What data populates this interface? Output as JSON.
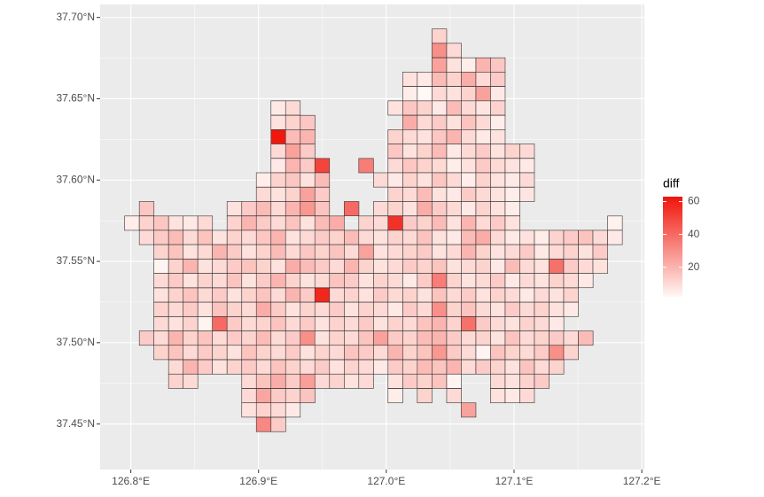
{
  "chart_data": {
    "type": "heatmap",
    "legend_title": "diff",
    "x": [
      126.8009,
      126.8124,
      126.8238,
      126.8353,
      126.8467,
      126.8582,
      126.8696,
      126.8811,
      126.8926,
      126.904,
      126.9155,
      126.9269,
      126.9384,
      126.9498,
      126.9613,
      126.9728,
      126.9842,
      126.9957,
      127.0071,
      127.0186,
      127.03,
      127.0415,
      127.053,
      127.0644,
      127.0759,
      127.0873,
      127.0988,
      127.1102,
      127.1217,
      127.1332,
      127.1446,
      127.1561,
      127.1675,
      127.179
    ],
    "y": [
      37.6885,
      37.6797,
      37.6708,
      37.662,
      37.6531,
      37.6443,
      37.6354,
      37.6266,
      37.6178,
      37.6089,
      37.6001,
      37.5912,
      37.5824,
      37.5735,
      37.5647,
      37.5559,
      37.547,
      37.5382,
      37.5293,
      37.5205,
      37.5116,
      37.5028,
      37.494,
      37.4851,
      37.4763,
      37.4674,
      37.4586,
      37.4497
    ],
    "values": [
      [
        null,
        null,
        null,
        null,
        null,
        null,
        null,
        null,
        null,
        null,
        null,
        null,
        null,
        null,
        null,
        null,
        null,
        null,
        null,
        null,
        null,
        12,
        null,
        null,
        null,
        null,
        null,
        null,
        null,
        null,
        null,
        null,
        null,
        null
      ],
      [
        null,
        null,
        null,
        null,
        null,
        null,
        null,
        null,
        null,
        null,
        null,
        null,
        null,
        null,
        null,
        null,
        null,
        null,
        null,
        null,
        null,
        30,
        10,
        null,
        null,
        null,
        null,
        null,
        null,
        null,
        null,
        null,
        null,
        null
      ],
      [
        null,
        null,
        null,
        null,
        null,
        null,
        null,
        null,
        null,
        null,
        null,
        null,
        null,
        null,
        null,
        null,
        null,
        null,
        null,
        null,
        null,
        25,
        8,
        5,
        20,
        15,
        null,
        null,
        null,
        null,
        null,
        null,
        null,
        null
      ],
      [
        null,
        null,
        null,
        null,
        null,
        null,
        null,
        null,
        null,
        null,
        null,
        null,
        null,
        null,
        null,
        null,
        null,
        null,
        null,
        8,
        6,
        18,
        12,
        22,
        10,
        14,
        null,
        null,
        null,
        null,
        null,
        null,
        null,
        null
      ],
      [
        null,
        null,
        null,
        null,
        null,
        null,
        null,
        null,
        null,
        null,
        null,
        null,
        null,
        null,
        null,
        null,
        null,
        null,
        null,
        5,
        2,
        10,
        8,
        12,
        25,
        6,
        null,
        null,
        null,
        null,
        null,
        null,
        null,
        null
      ],
      [
        null,
        null,
        null,
        null,
        null,
        null,
        null,
        null,
        null,
        null,
        6,
        10,
        null,
        null,
        null,
        null,
        null,
        null,
        8,
        15,
        12,
        6,
        18,
        10,
        7,
        12,
        null,
        null,
        null,
        null,
        null,
        null,
        null,
        null
      ],
      [
        null,
        null,
        null,
        null,
        null,
        null,
        null,
        null,
        null,
        null,
        8,
        12,
        15,
        null,
        null,
        null,
        null,
        null,
        null,
        22,
        10,
        14,
        8,
        16,
        10,
        5,
        null,
        null,
        null,
        null,
        null,
        null,
        null,
        null
      ],
      [
        null,
        null,
        null,
        null,
        null,
        null,
        null,
        null,
        null,
        null,
        62,
        18,
        20,
        null,
        null,
        null,
        null,
        null,
        12,
        10,
        8,
        15,
        20,
        10,
        6,
        8,
        null,
        null,
        null,
        null,
        null,
        null,
        null,
        null
      ],
      [
        null,
        null,
        null,
        null,
        null,
        null,
        null,
        null,
        null,
        null,
        10,
        25,
        14,
        null,
        null,
        null,
        null,
        null,
        15,
        8,
        12,
        18,
        6,
        10,
        14,
        8,
        12,
        10,
        null,
        null,
        null,
        null,
        null,
        null
      ],
      [
        null,
        null,
        null,
        null,
        null,
        null,
        null,
        null,
        null,
        null,
        6,
        20,
        14,
        50,
        null,
        null,
        35,
        null,
        10,
        15,
        12,
        10,
        5,
        8,
        14,
        10,
        8,
        6,
        null,
        null,
        null,
        null,
        null,
        null
      ],
      [
        null,
        null,
        null,
        null,
        null,
        null,
        null,
        null,
        null,
        5,
        12,
        15,
        8,
        18,
        null,
        null,
        null,
        10,
        6,
        12,
        8,
        15,
        10,
        5,
        12,
        8,
        6,
        10,
        null,
        null,
        null,
        null,
        null,
        null
      ],
      [
        null,
        null,
        null,
        null,
        null,
        null,
        null,
        null,
        null,
        10,
        8,
        12,
        25,
        14,
        null,
        null,
        null,
        null,
        12,
        10,
        18,
        8,
        6,
        14,
        10,
        8,
        5,
        7,
        null,
        null,
        null,
        null,
        null,
        null
      ],
      [
        null,
        15,
        null,
        null,
        null,
        null,
        null,
        8,
        14,
        18,
        10,
        20,
        28,
        16,
        null,
        40,
        null,
        10,
        12,
        8,
        22,
        14,
        10,
        6,
        12,
        8,
        5,
        null,
        null,
        null,
        null,
        null,
        null,
        null
      ],
      [
        5,
        12,
        15,
        8,
        6,
        10,
        null,
        12,
        20,
        14,
        10,
        16,
        8,
        18,
        22,
        null,
        12,
        10,
        55,
        14,
        12,
        18,
        8,
        20,
        10,
        14,
        8,
        null,
        null,
        null,
        null,
        null,
        null,
        4
      ],
      [
        null,
        10,
        14,
        18,
        10,
        16,
        8,
        12,
        10,
        15,
        20,
        8,
        10,
        14,
        12,
        18,
        10,
        8,
        12,
        10,
        16,
        8,
        6,
        18,
        22,
        10,
        6,
        8,
        5,
        12,
        14,
        16,
        10,
        6
      ],
      [
        null,
        null,
        12,
        16,
        8,
        10,
        20,
        14,
        8,
        12,
        18,
        10,
        15,
        12,
        16,
        10,
        25,
        8,
        10,
        12,
        14,
        8,
        10,
        20,
        12,
        8,
        10,
        14,
        6,
        10,
        12,
        8,
        14,
        null
      ],
      [
        null,
        null,
        3,
        12,
        20,
        8,
        10,
        14,
        16,
        12,
        8,
        22,
        18,
        14,
        10,
        20,
        12,
        8,
        10,
        14,
        12,
        16,
        8,
        10,
        12,
        6,
        18,
        10,
        8,
        38,
        14,
        10,
        8,
        null
      ],
      [
        null,
        null,
        10,
        14,
        8,
        12,
        10,
        16,
        8,
        14,
        20,
        12,
        8,
        10,
        16,
        14,
        8,
        12,
        10,
        6,
        14,
        35,
        12,
        8,
        10,
        14,
        6,
        10,
        8,
        12,
        10,
        6,
        null,
        null
      ],
      [
        null,
        null,
        8,
        12,
        16,
        10,
        14,
        8,
        12,
        16,
        10,
        20,
        14,
        58,
        10,
        12,
        8,
        14,
        10,
        12,
        8,
        16,
        10,
        14,
        8,
        12,
        10,
        6,
        10,
        8,
        12,
        null,
        null,
        null
      ],
      [
        null,
        null,
        12,
        10,
        14,
        8,
        16,
        12,
        10,
        22,
        14,
        8,
        12,
        10,
        14,
        8,
        12,
        10,
        6,
        14,
        10,
        30,
        12,
        16,
        10,
        8,
        14,
        10,
        12,
        8,
        6,
        null,
        null,
        null
      ],
      [
        null,
        null,
        10,
        8,
        12,
        3,
        40,
        14,
        10,
        12,
        16,
        10,
        14,
        8,
        12,
        10,
        14,
        8,
        12,
        10,
        16,
        20,
        12,
        38,
        14,
        10,
        8,
        12,
        10,
        6,
        null,
        null,
        null,
        null
      ],
      [
        null,
        14,
        10,
        20,
        12,
        16,
        10,
        14,
        12,
        18,
        10,
        14,
        30,
        8,
        12,
        10,
        16,
        25,
        14,
        12,
        18,
        20,
        14,
        10,
        12,
        8,
        16,
        10,
        12,
        14,
        10,
        18,
        null,
        null
      ],
      [
        null,
        null,
        12,
        16,
        10,
        14,
        12,
        8,
        16,
        12,
        10,
        14,
        8,
        12,
        10,
        16,
        14,
        10,
        20,
        12,
        16,
        28,
        14,
        10,
        3,
        16,
        12,
        10,
        14,
        30,
        12,
        null,
        null,
        null
      ],
      [
        null,
        null,
        null,
        10,
        20,
        14,
        8,
        12,
        14,
        10,
        16,
        12,
        10,
        14,
        8,
        12,
        10,
        6,
        14,
        12,
        18,
        16,
        20,
        10,
        14,
        12,
        8,
        16,
        10,
        12,
        null,
        null,
        null,
        null
      ],
      [
        null,
        null,
        null,
        12,
        10,
        null,
        null,
        null,
        10,
        16,
        22,
        14,
        26,
        10,
        12,
        8,
        10,
        null,
        8,
        14,
        12,
        16,
        3,
        null,
        null,
        10,
        8,
        12,
        14,
        null,
        null,
        null,
        null,
        null
      ],
      [
        null,
        null,
        null,
        null,
        null,
        null,
        null,
        null,
        10,
        24,
        14,
        12,
        16,
        null,
        null,
        null,
        null,
        null,
        5,
        null,
        12,
        null,
        10,
        null,
        null,
        8,
        6,
        10,
        null,
        null,
        null,
        null,
        null,
        null
      ],
      [
        null,
        null,
        null,
        null,
        null,
        null,
        null,
        null,
        8,
        12,
        10,
        6,
        null,
        null,
        null,
        null,
        null,
        null,
        null,
        null,
        null,
        null,
        null,
        25,
        null,
        null,
        null,
        null,
        null,
        null,
        null,
        null,
        null,
        null
      ],
      [
        null,
        null,
        null,
        null,
        null,
        null,
        null,
        null,
        null,
        32,
        14,
        null,
        null,
        null,
        null,
        null,
        null,
        null,
        null,
        null,
        null,
        null,
        null,
        null,
        null,
        null,
        null,
        null,
        null,
        null,
        null,
        null,
        null,
        null
      ]
    ],
    "xlim": [
      126.776,
      127.202
    ],
    "ylim": [
      37.422,
      37.708
    ],
    "xticks": [
      {
        "value": 126.8,
        "label": "126.8°E"
      },
      {
        "value": 126.9,
        "label": "126.9°E"
      },
      {
        "value": 127.0,
        "label": "127.0°E"
      },
      {
        "value": 127.1,
        "label": "127.1°E"
      },
      {
        "value": 127.2,
        "label": "127.2°E"
      }
    ],
    "yticks": [
      {
        "value": 37.45,
        "label": "37.45°N"
      },
      {
        "value": 37.5,
        "label": "37.50°N"
      },
      {
        "value": 37.55,
        "label": "37.55°N"
      },
      {
        "value": 37.6,
        "label": "37.60°N"
      },
      {
        "value": 37.65,
        "label": "37.65°N"
      },
      {
        "value": 37.7,
        "label": "37.70°N"
      }
    ],
    "clim": [
      2,
      63
    ],
    "cticks": [
      20,
      40,
      60
    ],
    "low_color": "#fff8f5",
    "high_color": "#f0140a",
    "grid": true
  }
}
